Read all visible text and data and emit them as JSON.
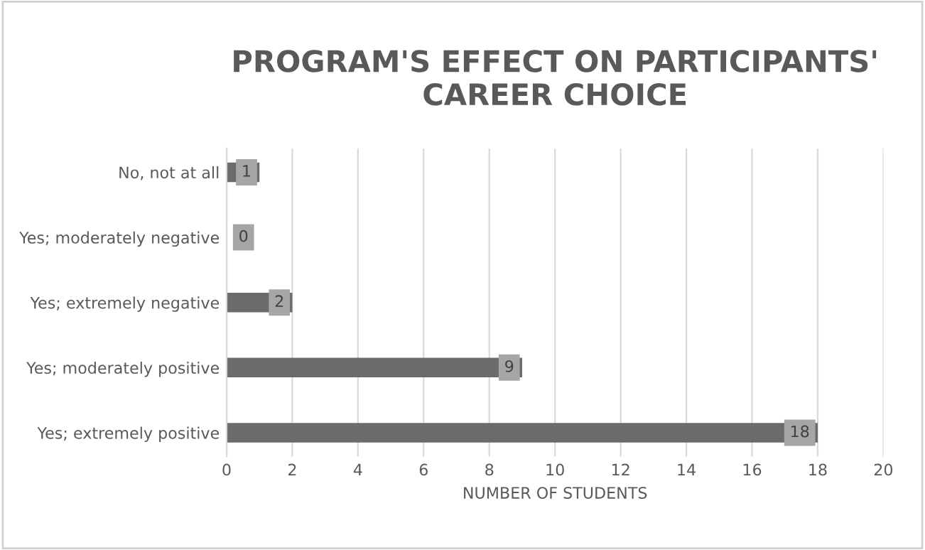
{
  "chart_data": {
    "type": "bar",
    "orientation": "horizontal",
    "title": "PROGRAM'S EFFECT ON PARTICIPANTS'\nCAREER CHOICE",
    "xlabel": "NUMBER OF STUDENTS",
    "categories": [
      "No, not at all",
      "Yes; moderately negative",
      "Yes; extremely negative",
      "Yes; moderately positive",
      "Yes; extremely positive"
    ],
    "values": [
      1,
      0,
      2,
      9,
      18
    ],
    "color": "#6b6b6b",
    "data_labels": true,
    "xlim": [
      0,
      20
    ],
    "xticks": [
      0,
      2,
      4,
      6,
      8,
      10,
      12,
      14,
      16,
      18,
      20
    ],
    "grid": "x",
    "legend": false
  }
}
